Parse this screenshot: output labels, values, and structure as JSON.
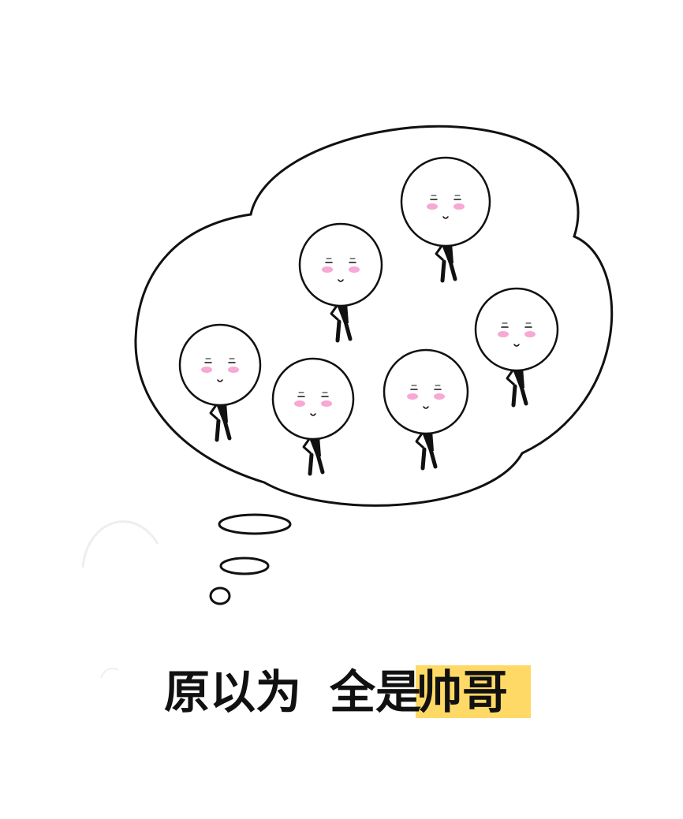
{
  "caption": {
    "part_1": "原以为",
    "part_2": "全是",
    "part_3_highlighted": "帅哥"
  },
  "colors": {
    "background": "#ffffff",
    "outline": "#111111",
    "blush": "#f7a8d4",
    "highlight": "#ffd966"
  },
  "figures": [
    {
      "name": "figure-1"
    },
    {
      "name": "figure-2"
    },
    {
      "name": "figure-3"
    },
    {
      "name": "figure-4"
    },
    {
      "name": "figure-5"
    },
    {
      "name": "figure-6"
    }
  ]
}
